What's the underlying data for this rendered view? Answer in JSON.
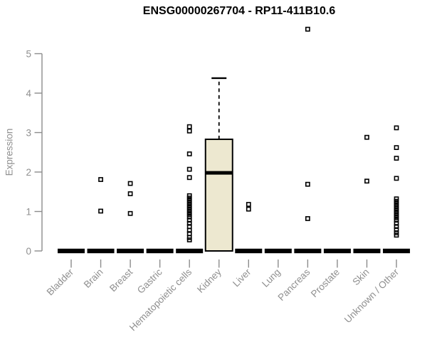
{
  "chart_data": {
    "type": "boxplot",
    "title": "ENSG00000267704 - RP11-411B10.6",
    "ylabel": "Expression",
    "xlabel": "",
    "ylim": [
      0,
      5
    ],
    "yticks": [
      0,
      1,
      2,
      3,
      4,
      5
    ],
    "grid": false,
    "legend": null,
    "colors": {
      "box_fill": "#ede8d0",
      "box_stroke": "#000000",
      "axis": "#8c8c8c",
      "tick_label": "#8f8f8f",
      "title": "#000000"
    },
    "categories": [
      "Bladder",
      "Brain",
      "Breast",
      "Gastric",
      "Hematopoietic cells",
      "Kidney",
      "Liver",
      "Lung",
      "Pancreas",
      "Prostate",
      "Skin",
      "Unknown / Other"
    ],
    "boxes": [
      {
        "category": "Bladder",
        "q1": 0,
        "median": 0,
        "q3": 0,
        "whisker_low": 0,
        "whisker_high": 0,
        "outliers": []
      },
      {
        "category": "Brain",
        "q1": 0,
        "median": 0,
        "q3": 0,
        "whisker_low": 0,
        "whisker_high": 0,
        "outliers": [
          1.81,
          1.01
        ]
      },
      {
        "category": "Breast",
        "q1": 0,
        "median": 0,
        "q3": 0,
        "whisker_low": 0,
        "whisker_high": 0,
        "outliers": [
          1.71,
          1.45,
          0.95
        ]
      },
      {
        "category": "Gastric",
        "q1": 0,
        "median": 0,
        "q3": 0,
        "whisker_low": 0,
        "whisker_high": 0,
        "outliers": []
      },
      {
        "category": "Hematopoietic cells",
        "q1": 0,
        "median": 0,
        "q3": 0,
        "whisker_low": 0,
        "whisker_high": 0,
        "outliers": [
          3.15,
          3.04,
          2.46,
          2.07,
          1.86,
          1.4,
          1.34,
          1.28,
          1.22,
          1.16,
          1.1,
          1.04,
          0.98,
          0.92,
          0.86,
          0.78,
          0.7,
          0.62,
          0.52,
          0.44,
          0.34,
          0.28
        ]
      },
      {
        "category": "Kidney",
        "q1": 0,
        "median": 1.98,
        "q3": 2.83,
        "whisker_low": 0,
        "whisker_high": 4.38,
        "outliers": []
      },
      {
        "category": "Liver",
        "q1": 0,
        "median": 0,
        "q3": 0,
        "whisker_low": 0,
        "whisker_high": 0,
        "outliers": [
          1.18,
          1.06
        ]
      },
      {
        "category": "Lung",
        "q1": 0,
        "median": 0,
        "q3": 0,
        "whisker_low": 0,
        "whisker_high": 0,
        "outliers": []
      },
      {
        "category": "Pancreas",
        "q1": 0,
        "median": 0,
        "q3": 0,
        "whisker_low": 0,
        "whisker_high": 0,
        "outliers": [
          5.62,
          1.69,
          0.82
        ]
      },
      {
        "category": "Prostate",
        "q1": 0,
        "median": 0,
        "q3": 0,
        "whisker_low": 0,
        "whisker_high": 0,
        "outliers": []
      },
      {
        "category": "Skin",
        "q1": 0,
        "median": 0,
        "q3": 0,
        "whisker_low": 0,
        "whisker_high": 0,
        "outliers": [
          2.88,
          1.77
        ]
      },
      {
        "category": "Unknown / Other",
        "q1": 0,
        "median": 0,
        "q3": 0,
        "whisker_low": 0,
        "whisker_high": 0,
        "outliers": [
          3.12,
          2.62,
          2.35,
          1.84,
          1.32,
          1.26,
          1.2,
          1.14,
          1.08,
          1.02,
          0.96,
          0.9,
          0.84,
          0.78,
          0.7,
          0.62,
          0.54,
          0.46,
          0.4
        ]
      }
    ]
  }
}
